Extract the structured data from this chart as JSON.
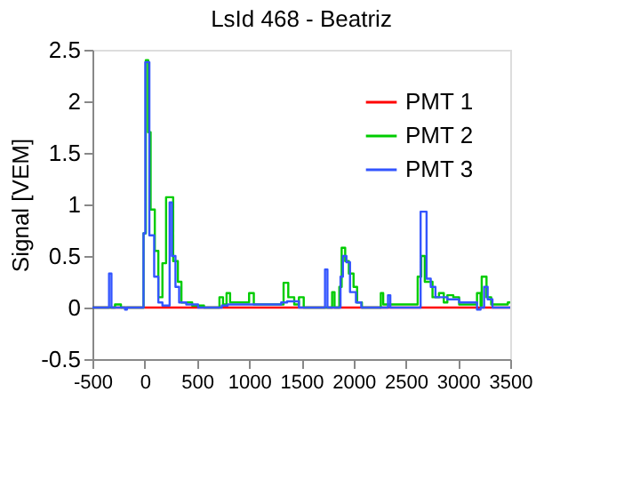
{
  "chart_data": {
    "type": "step",
    "title": "LsId 468 - Beatriz",
    "ylabel": "Signal [VEM]",
    "xlim": [
      -500,
      3500
    ],
    "xticks": [
      -500,
      0,
      500,
      1000,
      1500,
      2000,
      2500,
      3000,
      3500
    ],
    "ylim": [
      -0.5,
      2.5
    ],
    "yticks": [
      -0.5,
      0,
      0.5,
      1,
      1.5,
      2,
      2.5
    ],
    "legend": "top right",
    "grid": false,
    "line_style": "solid",
    "marker": "none",
    "series": [
      {
        "name": "PMT 1",
        "color": "#ff0000",
        "x": [
          -500,
          3500
        ],
        "values": [
          0,
          0
        ]
      },
      {
        "name": "PMT 2",
        "color": "#00cc00",
        "x": [
          -500,
          -284,
          -227,
          -11,
          11,
          34,
          57,
          97,
          131,
          170,
          205,
          273,
          318,
          352,
          455,
          568,
          716,
          750,
          784,
          818,
          1000,
          1045,
          1330,
          1375,
          1432,
          1477,
          1523,
          1795,
          1818,
          1864,
          1886,
          1920,
          1955,
          2000,
          2034,
          2080,
          2261,
          2284,
          2614,
          2648,
          2682,
          2756,
          2818,
          2864,
          2898,
          2955,
          3011,
          3182,
          3216,
          3227,
          3273,
          3318,
          3477,
          3500
        ],
        "values": [
          0,
          0.03,
          0,
          0.72,
          2.4,
          1.7,
          0.95,
          0.55,
          0.1,
          0.43,
          1.07,
          0.45,
          0.25,
          0.05,
          0.02,
          0,
          0.1,
          0.03,
          0.14,
          0.05,
          0.14,
          0.03,
          0.24,
          0.1,
          0.03,
          0.1,
          0,
          0.15,
          0,
          0.2,
          0.58,
          0.45,
          0.33,
          0.2,
          0.05,
          0,
          0.14,
          0.03,
          0.3,
          0.5,
          0.25,
          0.1,
          0.14,
          0.05,
          0.12,
          0.1,
          0.03,
          0.14,
          0.02,
          0.3,
          0.1,
          0.03,
          0.05,
          0.05
        ]
      },
      {
        "name": "PMT 3",
        "color": "#3355ff",
        "x": [
          -500,
          -341,
          -318,
          -188,
          -170,
          -11,
          6,
          45,
          91,
          131,
          170,
          239,
          261,
          295,
          330,
          398,
          511,
          739,
          795,
          1307,
          1364,
          1477,
          1727,
          1750,
          1875,
          1898,
          1932,
          1966,
          2023,
          2074,
          2330,
          2352,
          2642,
          2699,
          2739,
          2784,
          2898,
          3011,
          3182,
          3216,
          3250,
          3284,
          3330,
          3500
        ],
        "values": [
          0,
          0.33,
          0,
          -0.02,
          0,
          0.72,
          2.38,
          0.7,
          0.3,
          0.05,
          0.02,
          1.02,
          0.5,
          0.2,
          0.05,
          0.03,
          0,
          0.02,
          0.03,
          0.05,
          0.06,
          0,
          0.37,
          0,
          0.3,
          0.5,
          0.44,
          0.15,
          0.05,
          0,
          0.12,
          0,
          0.93,
          0.28,
          0.2,
          0.1,
          0.08,
          0.05,
          -0.02,
          0,
          0.2,
          0.08,
          0,
          0
        ]
      }
    ]
  }
}
